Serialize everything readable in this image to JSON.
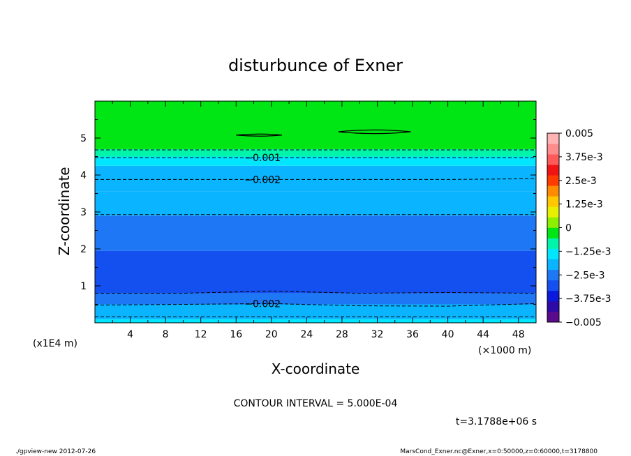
{
  "chart_data": {
    "type": "contour",
    "title": "disturbunce of Exner",
    "xlabel": "X-coordinate",
    "ylabel": "Z-coordinate",
    "x_unit": "(×1000 m)",
    "y_unit": "(x1E4 m)",
    "xlim": [
      0,
      50
    ],
    "ylim": [
      0,
      6
    ],
    "x_ticks": [
      4,
      8,
      12,
      16,
      20,
      24,
      28,
      32,
      36,
      40,
      44,
      48
    ],
    "y_ticks": [
      1,
      2,
      3,
      4,
      5
    ],
    "contour_interval": "CONTOUR INTERVAL = 5.000E-04",
    "time_label": "t=3.1788e+06 s",
    "colorbar": {
      "min": -0.005,
      "max": 0.005,
      "tick_labels": [
        "0.005",
        "3.75e-3",
        "2.5e-3",
        "1.25e-3",
        "0",
        "−1.25e-3",
        "−2.5e-3",
        "−3.75e-3",
        "−0.005"
      ],
      "colors": [
        "#5a0a8c",
        "#2d0aa8",
        "#0a19dc",
        "#1450f0",
        "#1e78f5",
        "#0ab4ff",
        "#00e6ff",
        "#00f5aa",
        "#00e614",
        "#8cf000",
        "#e6f000",
        "#ffc800",
        "#ff8c00",
        "#ff3c00",
        "#f01414",
        "#ff5a5a",
        "#ff8c8c",
        "#ffb4b4"
      ]
    },
    "bands": [
      {
        "z_from": 0.0,
        "z_to": 0.1,
        "color": "#00e6ff"
      },
      {
        "z_from": 0.1,
        "z_to": 0.5,
        "color": "#0ab4ff"
      },
      {
        "z_from": 0.5,
        "z_to": 0.8,
        "color": "#1e78f5"
      },
      {
        "z_from": 0.8,
        "z_to": 1.95,
        "color": "#1450f0"
      },
      {
        "z_from": 1.95,
        "z_to": 2.9,
        "color": "#1e78f5"
      },
      {
        "z_from": 2.9,
        "z_to": 3.55,
        "color": "#0ab4ff"
      },
      {
        "z_from": 3.55,
        "z_to": 4.25,
        "color": "#0ab4ff"
      },
      {
        "z_from": 4.25,
        "z_to": 4.5,
        "color": "#00e6ff"
      },
      {
        "z_from": 4.5,
        "z_to": 4.7,
        "color": "#00f5aa"
      },
      {
        "z_from": 4.7,
        "z_to": 6.0,
        "color": "#00e614"
      }
    ],
    "dashed_contours": [
      {
        "z": [
          0.16,
          0.16,
          0.16,
          0.16,
          0.16,
          0.16
        ]
      },
      {
        "z": [
          0.48,
          0.5,
          0.52,
          0.46,
          0.45,
          0.52
        ],
        "label": "−0.002",
        "label_x": 19
      },
      {
        "z": [
          0.8,
          0.8,
          0.86,
          0.8,
          0.82,
          0.8
        ]
      },
      {
        "z": [
          2.93,
          2.93,
          2.93,
          2.93,
          2.93,
          2.93
        ]
      },
      {
        "z": [
          3.88,
          3.88,
          3.88,
          3.88,
          3.88,
          3.9
        ],
        "label": "−0.002",
        "label_x": 19
      },
      {
        "z": [
          4.47,
          4.47,
          4.47,
          4.47,
          4.47,
          4.47
        ],
        "label": "−0.001",
        "label_x": 19
      },
      {
        "z": [
          4.68,
          4.68,
          4.68,
          4.68,
          4.68,
          4.68
        ]
      }
    ],
    "closed_contours": [
      {
        "x_from": 16.0,
        "x_to": 21.2,
        "z": 5.08,
        "half_height": 0.02
      },
      {
        "x_from": 27.6,
        "x_to": 35.8,
        "z": 5.17,
        "half_height": 0.05
      }
    ]
  },
  "footer": {
    "left": "./gpview-new   2012-07-26",
    "right": "MarsCond_Exner.nc@Exner,x=0:50000,z=0:60000,t=3178800"
  }
}
